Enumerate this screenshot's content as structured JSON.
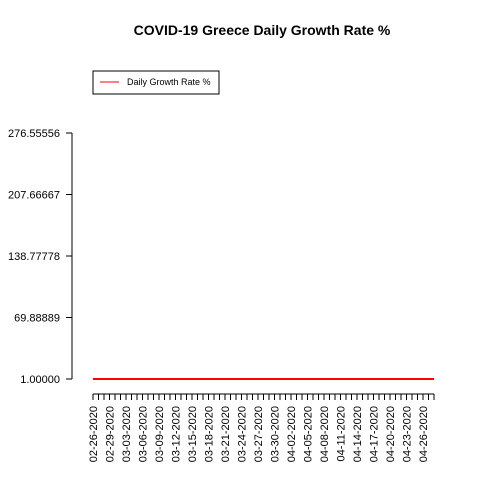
{
  "chart_data": {
    "type": "line",
    "title": "COVID-19 Greece Daily Growth Rate %",
    "xlabel": "",
    "ylabel": "",
    "legend": {
      "placement": "top-left",
      "entries": [
        "Daily Growth Rate %"
      ]
    },
    "y_ticks": [
      "1.00000",
      "69.88889",
      "138.77778",
      "207.66667",
      "276.55556"
    ],
    "ylim": [
      1.0,
      276.55556
    ],
    "x_start": "02-26-2020",
    "x_end": "04-28-2020",
    "x_tick_labels": [
      "02-26-2020",
      "02-29-2020",
      "03-03-2020",
      "03-06-2020",
      "03-09-2020",
      "03-12-2020",
      "03-15-2020",
      "03-18-2020",
      "03-21-2020",
      "03-24-2020",
      "03-27-2020",
      "03-30-2020",
      "04-02-2020",
      "04-05-2020",
      "04-08-2020",
      "04-11-2020",
      "04-14-2020",
      "04-17-2020",
      "04-20-2020",
      "04-23-2020",
      "04-26-2020"
    ],
    "series": [
      {
        "name": "Daily Growth Rate %",
        "color": "#ff0000",
        "y_constant": 1.0
      }
    ],
    "grid": false
  }
}
